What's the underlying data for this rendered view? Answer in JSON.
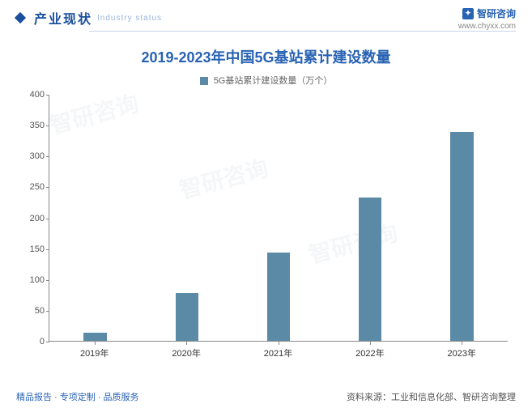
{
  "header": {
    "title": "产业现状",
    "sub": "Industry status"
  },
  "brand": {
    "name": "智研咨询",
    "url": "www.chyxx.com"
  },
  "chart": {
    "type": "bar",
    "title": "2019-2023年中国5G基站累计建设数量",
    "legend_label": "5G基站累计建设数量（万个）",
    "categories": [
      "2019年",
      "2020年",
      "2021年",
      "2022年",
      "2023年"
    ],
    "values": [
      13,
      78,
      143,
      232,
      338
    ],
    "bar_color": "#5b8aa6",
    "ylim": [
      0,
      400
    ],
    "ytick_step": 50,
    "bar_width_pct": 5,
    "background_color": "#ffffff",
    "axis_color": "#888888",
    "title_color": "#2862b3",
    "title_fontsize": 18,
    "label_fontsize": 11
  },
  "footer": {
    "left": "精品报告 · 专项定制 · 品质服务",
    "right": "资料来源：工业和信息化部、智研咨询整理"
  },
  "watermark_text": "智研咨询"
}
